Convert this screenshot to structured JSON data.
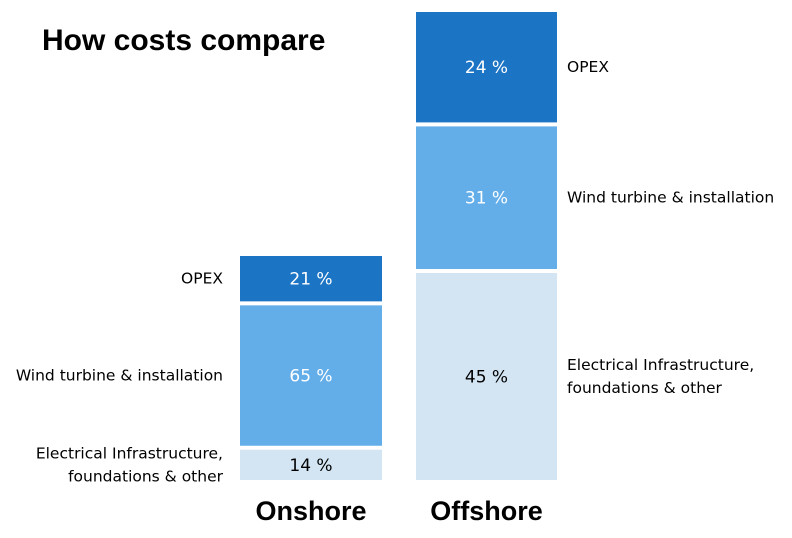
{
  "chart_data": {
    "type": "bar",
    "stacked": true,
    "title": "How costs compare",
    "categories": [
      "Onshore",
      "Offshore"
    ],
    "series": [
      {
        "name": "Electrical Infrastructure, foundations & other",
        "values": [
          14,
          45
        ],
        "labels": [
          "14 %",
          "45 %"
        ]
      },
      {
        "name": "Wind turbine & installation",
        "values": [
          65,
          31
        ],
        "labels": [
          "65 %",
          "31 %"
        ]
      },
      {
        "name": "OPEX",
        "values": [
          21,
          24
        ],
        "labels": [
          "21 %",
          "24 %"
        ]
      }
    ],
    "side_labels": {
      "Onshore": [
        [
          "Electrical Infrastructure,",
          "foundations & other"
        ],
        [
          "Wind turbine & installation"
        ],
        [
          "OPEX"
        ]
      ],
      "Offshore": [
        [
          "Electrical Infrastructure,",
          "foundations & other"
        ],
        [
          "Wind turbine & installation"
        ],
        [
          "OPEX"
        ]
      ]
    },
    "colors": [
      "#d3e5f3",
      "#63aee9",
      "#1c74c4"
    ],
    "label_colors": [
      "#000000",
      "#ffffff",
      "#ffffff"
    ],
    "legend": "side labels"
  }
}
